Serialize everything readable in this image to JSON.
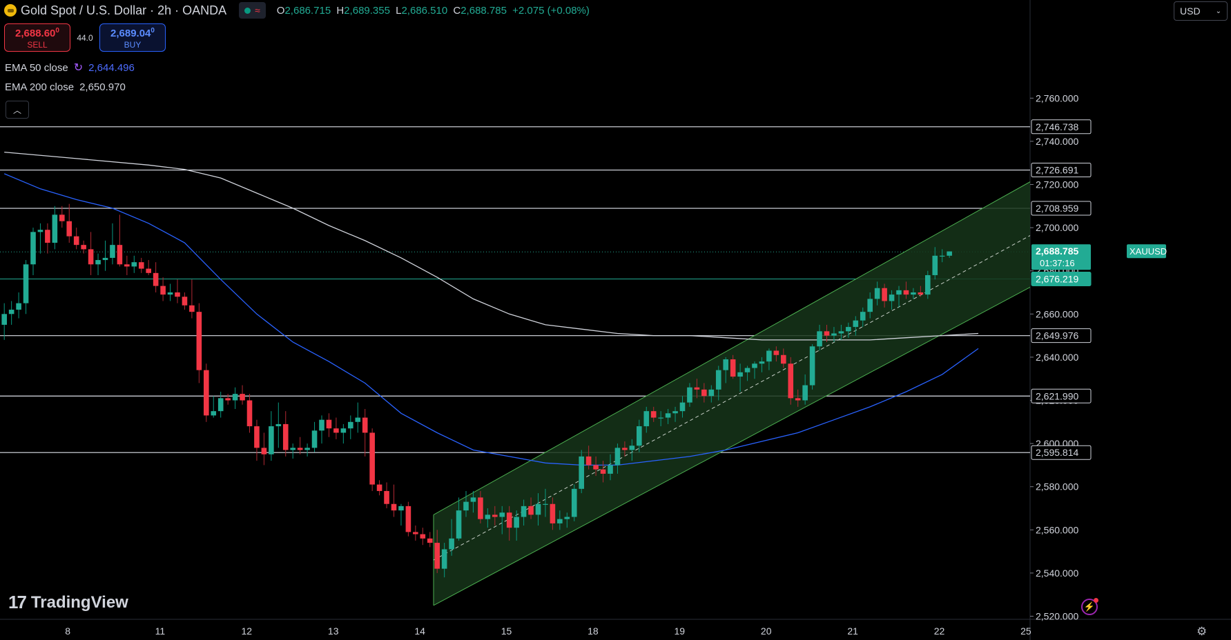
{
  "header": {
    "title": "Gold Spot / U.S. Dollar · 2h · OANDA",
    "ohlc": [
      {
        "k": "O",
        "v": "2,686.715"
      },
      {
        "k": "H",
        "v": "2,689.355"
      },
      {
        "k": "L",
        "v": "2,686.510"
      },
      {
        "k": "C",
        "v": "2,688.785"
      }
    ],
    "change": "+2.075 (+0.08%)"
  },
  "trade": {
    "sell_price": "2,688.60",
    "sell_price_sup": "0",
    "sell_label": "SELL",
    "spread": "44.0",
    "buy_price": "2,689.04",
    "buy_price_sup": "0",
    "buy_label": "BUY"
  },
  "indicators": {
    "ema50_label": "EMA 50 close",
    "ema50_value": "2,644.496",
    "ema200_label": "EMA 200 close",
    "ema200_value": "2,650.970"
  },
  "currency_selector": "USD",
  "brand": "TradingView",
  "colors": {
    "up": "#22ab94",
    "down": "#f23645",
    "ema50": "#2962ff",
    "ema200": "#d1d4dc",
    "channel_fill": "#16351a",
    "channel_line": "#4caf50",
    "price_label": "#22ab94"
  },
  "chart_data": {
    "type": "candlestick",
    "symbol": "XAUUSD",
    "timeframe": "2h",
    "ylim": [
      2518,
      2778
    ],
    "yticks": [
      2520,
      2540,
      2560,
      2580,
      2600,
      2620,
      2640,
      2660,
      2680,
      2700,
      2720,
      2740,
      2760
    ],
    "ytick_labels": [
      "2,520.000",
      "2,540.000",
      "2,560.000",
      "2,580.000",
      "2,600.000",
      "2,620.000",
      "2,640.000",
      "2,660.000",
      "2,680.000",
      "2,700.000",
      "2,720.000",
      "2,740.000",
      "2,760.000"
    ],
    "x_labels": [
      {
        "label": "8",
        "bar": 8.8
      },
      {
        "label": "11",
        "bar": 21.6
      },
      {
        "label": "12",
        "bar": 33.6
      },
      {
        "label": "13",
        "bar": 45.6
      },
      {
        "label": "14",
        "bar": 57.6
      },
      {
        "label": "15",
        "bar": 69.6
      },
      {
        "label": "18",
        "bar": 81.6
      },
      {
        "label": "19",
        "bar": 93.6
      },
      {
        "label": "20",
        "bar": 105.6
      },
      {
        "label": "21",
        "bar": 117.6
      },
      {
        "label": "22",
        "bar": 129.6
      },
      {
        "label": "25",
        "bar": 141.6
      }
    ],
    "ohlc": [
      [
        2655,
        2665,
        2648,
        2660
      ],
      [
        2660,
        2666,
        2655,
        2662
      ],
      [
        2662,
        2670,
        2658,
        2665
      ],
      [
        2665,
        2685,
        2660,
        2683
      ],
      [
        2683,
        2700,
        2678,
        2698
      ],
      [
        2698,
        2702,
        2688,
        2699
      ],
      [
        2699,
        2702,
        2688,
        2693
      ],
      [
        2693,
        2710,
        2690,
        2706
      ],
      [
        2706,
        2710,
        2700,
        2703
      ],
      [
        2703,
        2711,
        2693,
        2696
      ],
      [
        2696,
        2700,
        2690,
        2692
      ],
      [
        2692,
        2694,
        2688,
        2690
      ],
      [
        2690,
        2698,
        2678,
        2683
      ],
      [
        2683,
        2688,
        2678,
        2685
      ],
      [
        2685,
        2694,
        2680,
        2686
      ],
      [
        2686,
        2702,
        2683,
        2692
      ],
      [
        2692,
        2706,
        2682,
        2683
      ],
      [
        2683,
        2687,
        2678,
        2682
      ],
      [
        2682,
        2687,
        2679,
        2684
      ],
      [
        2684,
        2686,
        2679,
        2681
      ],
      [
        2681,
        2685,
        2678,
        2679
      ],
      [
        2679,
        2684,
        2670,
        2673
      ],
      [
        2673,
        2677,
        2666,
        2669
      ],
      [
        2669,
        2674,
        2666,
        2670
      ],
      [
        2670,
        2676,
        2665,
        2668
      ],
      [
        2668,
        2670,
        2662,
        2664
      ],
      [
        2664,
        2676,
        2658,
        2661
      ],
      [
        2661,
        2665,
        2628,
        2634
      ],
      [
        2634,
        2637,
        2610,
        2613
      ],
      [
        2613,
        2622,
        2612,
        2615
      ],
      [
        2615,
        2624,
        2612,
        2621
      ],
      [
        2621,
        2623,
        2618,
        2620
      ],
      [
        2620,
        2626,
        2616,
        2623
      ],
      [
        2623,
        2627,
        2618,
        2620
      ],
      [
        2620,
        2623,
        2605,
        2608
      ],
      [
        2608,
        2611,
        2592,
        2598
      ],
      [
        2598,
        2605,
        2590,
        2595
      ],
      [
        2595,
        2615,
        2592,
        2608
      ],
      [
        2608,
        2619,
        2598,
        2609
      ],
      [
        2609,
        2615,
        2594,
        2597
      ],
      [
        2597,
        2600,
        2593,
        2598
      ],
      [
        2598,
        2603,
        2595,
        2597
      ],
      [
        2597,
        2600,
        2594,
        2598
      ],
      [
        2598,
        2610,
        2596,
        2606
      ],
      [
        2606,
        2613,
        2600,
        2611
      ],
      [
        2611,
        2614,
        2603,
        2607
      ],
      [
        2607,
        2612,
        2602,
        2605
      ],
      [
        2605,
        2609,
        2600,
        2607
      ],
      [
        2607,
        2613,
        2602,
        2610
      ],
      [
        2610,
        2619,
        2605,
        2612
      ],
      [
        2612,
        2616,
        2594,
        2605
      ],
      [
        2605,
        2607,
        2578,
        2581
      ],
      [
        2581,
        2583,
        2576,
        2578
      ],
      [
        2578,
        2582,
        2570,
        2572
      ],
      [
        2572,
        2581,
        2566,
        2569
      ],
      [
        2569,
        2572,
        2562,
        2571
      ],
      [
        2571,
        2573,
        2557,
        2559
      ],
      [
        2559,
        2562,
        2555,
        2558
      ],
      [
        2558,
        2561,
        2553,
        2556
      ],
      [
        2556,
        2559,
        2552,
        2554
      ],
      [
        2554,
        2560,
        2540,
        2542
      ],
      [
        2542,
        2554,
        2538,
        2551
      ],
      [
        2551,
        2565,
        2548,
        2556
      ],
      [
        2556,
        2575,
        2555,
        2569
      ],
      [
        2569,
        2578,
        2566,
        2573
      ],
      [
        2573,
        2578,
        2568,
        2575
      ],
      [
        2575,
        2578,
        2563,
        2565
      ],
      [
        2565,
        2570,
        2561,
        2567
      ],
      [
        2567,
        2571,
        2562,
        2566
      ],
      [
        2566,
        2571,
        2558,
        2568
      ],
      [
        2568,
        2571,
        2555,
        2561
      ],
      [
        2561,
        2569,
        2555,
        2566
      ],
      [
        2566,
        2574,
        2562,
        2571
      ],
      [
        2571,
        2575,
        2565,
        2567
      ],
      [
        2567,
        2577,
        2562,
        2572
      ],
      [
        2572,
        2579,
        2566,
        2572
      ],
      [
        2572,
        2575,
        2560,
        2563
      ],
      [
        2563,
        2569,
        2560,
        2565
      ],
      [
        2565,
        2568,
        2561,
        2566
      ],
      [
        2566,
        2581,
        2564,
        2579
      ],
      [
        2579,
        2597,
        2577,
        2594
      ],
      [
        2594,
        2599,
        2588,
        2590
      ],
      [
        2590,
        2594,
        2585,
        2588
      ],
      [
        2588,
        2592,
        2582,
        2586
      ],
      [
        2586,
        2595,
        2583,
        2590
      ],
      [
        2590,
        2600,
        2586,
        2598
      ],
      [
        2598,
        2601,
        2594,
        2597
      ],
      [
        2597,
        2602,
        2592,
        2599
      ],
      [
        2599,
        2611,
        2596,
        2608
      ],
      [
        2608,
        2617,
        2605,
        2615
      ],
      [
        2615,
        2617,
        2610,
        2612
      ],
      [
        2612,
        2615,
        2608,
        2612
      ],
      [
        2612,
        2616,
        2609,
        2614
      ],
      [
        2614,
        2617,
        2610,
        2615
      ],
      [
        2615,
        2622,
        2612,
        2619
      ],
      [
        2619,
        2628,
        2617,
        2626
      ],
      [
        2626,
        2630,
        2621,
        2625
      ],
      [
        2625,
        2628,
        2619,
        2622
      ],
      [
        2622,
        2627,
        2619,
        2625
      ],
      [
        2625,
        2636,
        2620,
        2634
      ],
      [
        2634,
        2640,
        2628,
        2639
      ],
      [
        2639,
        2641,
        2630,
        2631
      ],
      [
        2631,
        2637,
        2624,
        2633
      ],
      [
        2633,
        2636,
        2629,
        2635
      ],
      [
        2635,
        2638,
        2630,
        2637
      ],
      [
        2637,
        2640,
        2633,
        2638
      ],
      [
        2638,
        2644,
        2634,
        2643
      ],
      [
        2643,
        2645,
        2638,
        2641
      ],
      [
        2641,
        2644,
        2635,
        2637
      ],
      [
        2637,
        2640,
        2618,
        2621
      ],
      [
        2621,
        2625,
        2617,
        2620
      ],
      [
        2620,
        2632,
        2618,
        2627
      ],
      [
        2627,
        2646,
        2625,
        2645
      ],
      [
        2645,
        2655,
        2643,
        2652
      ],
      [
        2652,
        2655,
        2647,
        2650
      ],
      [
        2650,
        2654,
        2647,
        2651
      ],
      [
        2651,
        2655,
        2648,
        2652
      ],
      [
        2652,
        2656,
        2649,
        2654
      ],
      [
        2654,
        2659,
        2650,
        2657
      ],
      [
        2657,
        2663,
        2654,
        2661
      ],
      [
        2661,
        2670,
        2658,
        2667
      ],
      [
        2667,
        2675,
        2664,
        2672
      ],
      [
        2672,
        2674,
        2663,
        2666
      ],
      [
        2666,
        2671,
        2662,
        2669
      ],
      [
        2669,
        2673,
        2663,
        2671
      ],
      [
        2671,
        2675,
        2667,
        2669
      ],
      [
        2669,
        2672,
        2667,
        2670
      ],
      [
        2670,
        2673,
        2668,
        2669
      ],
      [
        2669,
        2680,
        2667,
        2678
      ],
      [
        2678,
        2691,
        2676,
        2687
      ],
      [
        2687,
        2690,
        2684,
        2687
      ],
      [
        2687,
        2689,
        2686,
        2689
      ]
    ],
    "ema50": [
      [
        0,
        2725
      ],
      [
        5,
        2718
      ],
      [
        10,
        2713
      ],
      [
        15,
        2709
      ],
      [
        20,
        2702
      ],
      [
        25,
        2693
      ],
      [
        30,
        2676
      ],
      [
        35,
        2660
      ],
      [
        40,
        2647
      ],
      [
        45,
        2638
      ],
      [
        50,
        2628
      ],
      [
        55,
        2614
      ],
      [
        60,
        2605
      ],
      [
        65,
        2597
      ],
      [
        70,
        2594
      ],
      [
        75,
        2591
      ],
      [
        80,
        2590
      ],
      [
        85,
        2590
      ],
      [
        90,
        2592
      ],
      [
        95,
        2594
      ],
      [
        100,
        2597
      ],
      [
        105,
        2601
      ],
      [
        110,
        2605
      ],
      [
        115,
        2611
      ],
      [
        120,
        2617
      ],
      [
        125,
        2624
      ],
      [
        130,
        2632
      ],
      [
        135,
        2644
      ]
    ],
    "ema200": [
      [
        0,
        2735
      ],
      [
        10,
        2732
      ],
      [
        20,
        2729
      ],
      [
        25,
        2727
      ],
      [
        30,
        2723
      ],
      [
        35,
        2716
      ],
      [
        40,
        2709
      ],
      [
        45,
        2701
      ],
      [
        50,
        2694
      ],
      [
        55,
        2686
      ],
      [
        60,
        2677
      ],
      [
        65,
        2667
      ],
      [
        70,
        2660
      ],
      [
        75,
        2655
      ],
      [
        80,
        2653
      ],
      [
        85,
        2651
      ],
      [
        90,
        2650
      ],
      [
        95,
        2650
      ],
      [
        100,
        2649
      ],
      [
        105,
        2648
      ],
      [
        110,
        2648
      ],
      [
        115,
        2648
      ],
      [
        120,
        2648
      ],
      [
        125,
        2649
      ],
      [
        130,
        2650
      ],
      [
        135,
        2651
      ]
    ],
    "channel": {
      "x_start": 59.5,
      "x_end": 144.2,
      "upper": [
        2567,
        2725
      ],
      "lower": [
        2525,
        2676
      ],
      "middle": [
        2546,
        2700
      ]
    },
    "horizontal_levels": [
      {
        "price": 2746.738,
        "label": "2,746.738"
      },
      {
        "price": 2726.691,
        "label": "2,726.691"
      },
      {
        "price": 2708.959,
        "label": "2,708.959"
      },
      {
        "price": 2649.976,
        "label": "2,649.976"
      },
      {
        "price": 2621.99,
        "label": "2,621.990"
      },
      {
        "price": 2595.814,
        "label": "2,595.814"
      }
    ],
    "support_level": {
      "price": 2676.219,
      "label": "2,676.219"
    },
    "last_price": {
      "price": 2688.785,
      "label": "2,688.785",
      "countdown": "01:37:16",
      "tag": "XAUUSD"
    }
  }
}
